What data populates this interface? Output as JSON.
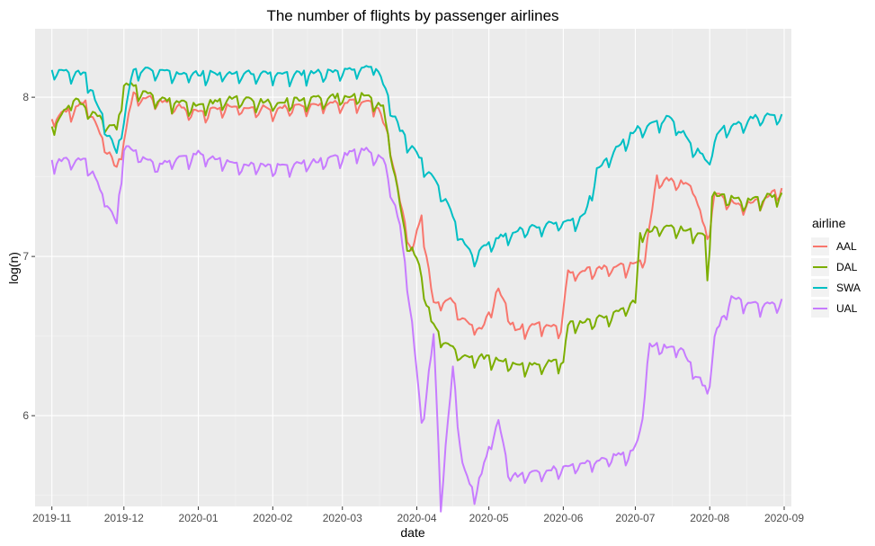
{
  "chart_data": {
    "type": "line",
    "title": "The number of flights by passenger airlines",
    "xlabel": "date",
    "ylabel": "log(n)",
    "x_range": [
      "2019-10-25",
      "2020-09-04"
    ],
    "ylim": [
      5.43,
      8.43
    ],
    "x_ticks": [
      "2019-11",
      "2019-12",
      "2020-01",
      "2020-02",
      "2020-03",
      "2020-04",
      "2020-05",
      "2020-06",
      "2020-07",
      "2020-08",
      "2020-09"
    ],
    "y_ticks": [
      6,
      7,
      8
    ],
    "grid": true,
    "legend": {
      "title": "airline",
      "position": "right"
    },
    "series": [
      {
        "name": "AAL",
        "color": "#F8766D",
        "points": [
          [
            "2019-11-01",
            7.87
          ],
          [
            "2019-11-15",
            7.97
          ],
          [
            "2019-11-28",
            7.55
          ],
          [
            "2019-12-05",
            8.02
          ],
          [
            "2019-12-20",
            7.97
          ],
          [
            "2020-01-01",
            7.9
          ],
          [
            "2020-01-15",
            7.95
          ],
          [
            "2020-02-01",
            7.93
          ],
          [
            "2020-02-20",
            7.96
          ],
          [
            "2020-03-05",
            7.98
          ],
          [
            "2020-03-15",
            7.96
          ],
          [
            "2020-03-20",
            7.78
          ],
          [
            "2020-03-25",
            7.35
          ],
          [
            "2020-03-30",
            7.05
          ],
          [
            "2020-04-03",
            7.25
          ],
          [
            "2020-04-08",
            6.7
          ],
          [
            "2020-04-15",
            6.75
          ],
          [
            "2020-04-20",
            6.6
          ],
          [
            "2020-04-28",
            6.55
          ],
          [
            "2020-05-05",
            6.8
          ],
          [
            "2020-05-12",
            6.55
          ],
          [
            "2020-05-20",
            6.58
          ],
          [
            "2020-05-31",
            6.56
          ],
          [
            "2020-06-03",
            6.9
          ],
          [
            "2020-06-15",
            6.93
          ],
          [
            "2020-07-01",
            6.95
          ],
          [
            "2020-07-05",
            7.0
          ],
          [
            "2020-07-10",
            7.5
          ],
          [
            "2020-07-25",
            7.45
          ],
          [
            "2020-07-31",
            7.12
          ],
          [
            "2020-08-03",
            7.4
          ],
          [
            "2020-08-15",
            7.32
          ],
          [
            "2020-08-25",
            7.38
          ],
          [
            "2020-08-31",
            7.43
          ]
        ]
      },
      {
        "name": "DAL",
        "color": "#7CAE00",
        "points": [
          [
            "2019-11-01",
            7.82
          ],
          [
            "2019-11-10",
            8.0
          ],
          [
            "2019-11-28",
            7.8
          ],
          [
            "2019-12-01",
            8.1
          ],
          [
            "2019-12-15",
            8.0
          ],
          [
            "2020-01-01",
            7.95
          ],
          [
            "2020-01-15",
            8.0
          ],
          [
            "2020-02-01",
            7.97
          ],
          [
            "2020-02-20",
            8.0
          ],
          [
            "2020-03-10",
            8.02
          ],
          [
            "2020-03-18",
            7.95
          ],
          [
            "2020-03-22",
            7.6
          ],
          [
            "2020-03-27",
            7.15
          ],
          [
            "2020-04-02",
            6.95
          ],
          [
            "2020-04-07",
            6.6
          ],
          [
            "2020-04-12",
            6.48
          ],
          [
            "2020-04-20",
            6.38
          ],
          [
            "2020-05-01",
            6.37
          ],
          [
            "2020-05-15",
            6.32
          ],
          [
            "2020-06-01",
            6.35
          ],
          [
            "2020-06-03",
            6.58
          ],
          [
            "2020-06-20",
            6.63
          ],
          [
            "2020-07-01",
            6.72
          ],
          [
            "2020-07-03",
            7.15
          ],
          [
            "2020-07-15",
            7.2
          ],
          [
            "2020-07-30",
            7.14
          ],
          [
            "2020-07-31",
            6.85
          ],
          [
            "2020-08-02",
            7.4
          ],
          [
            "2020-08-15",
            7.35
          ],
          [
            "2020-08-25",
            7.38
          ],
          [
            "2020-08-31",
            7.4
          ]
        ]
      },
      {
        "name": "SWA",
        "color": "#00BFC4",
        "points": [
          [
            "2019-11-01",
            8.18
          ],
          [
            "2019-11-15",
            8.15
          ],
          [
            "2019-11-28",
            7.65
          ],
          [
            "2019-12-05",
            8.18
          ],
          [
            "2020-01-01",
            8.15
          ],
          [
            "2020-01-20",
            8.16
          ],
          [
            "2020-02-10",
            8.15
          ],
          [
            "2020-03-01",
            8.17
          ],
          [
            "2020-03-15",
            8.2
          ],
          [
            "2020-03-20",
            8.0
          ],
          [
            "2020-03-25",
            7.8
          ],
          [
            "2020-04-01",
            7.65
          ],
          [
            "2020-04-10",
            7.45
          ],
          [
            "2020-04-15",
            7.3
          ],
          [
            "2020-04-20",
            7.1
          ],
          [
            "2020-04-25",
            7.0
          ],
          [
            "2020-05-01",
            7.1
          ],
          [
            "2020-05-15",
            7.18
          ],
          [
            "2020-05-31",
            7.22
          ],
          [
            "2020-06-10",
            7.26
          ],
          [
            "2020-06-15",
            7.55
          ],
          [
            "2020-07-01",
            7.8
          ],
          [
            "2020-07-15",
            7.88
          ],
          [
            "2020-07-31",
            7.6
          ],
          [
            "2020-08-05",
            7.8
          ],
          [
            "2020-08-20",
            7.88
          ],
          [
            "2020-08-31",
            7.9
          ]
        ]
      },
      {
        "name": "UAL",
        "color": "#C77CFF",
        "points": [
          [
            "2019-11-01",
            7.6
          ],
          [
            "2019-11-15",
            7.62
          ],
          [
            "2019-11-28",
            7.22
          ],
          [
            "2019-12-01",
            7.7
          ],
          [
            "2019-12-15",
            7.58
          ],
          [
            "2020-01-01",
            7.65
          ],
          [
            "2020-01-20",
            7.58
          ],
          [
            "2020-02-01",
            7.57
          ],
          [
            "2020-02-20",
            7.6
          ],
          [
            "2020-03-10",
            7.68
          ],
          [
            "2020-03-18",
            7.62
          ],
          [
            "2020-03-25",
            7.2
          ],
          [
            "2020-03-30",
            6.6
          ],
          [
            "2020-04-03",
            5.95
          ],
          [
            "2020-04-08",
            6.5
          ],
          [
            "2020-04-11",
            5.47
          ],
          [
            "2020-04-16",
            6.3
          ],
          [
            "2020-04-20",
            5.7
          ],
          [
            "2020-04-25",
            5.5
          ],
          [
            "2020-05-01",
            5.8
          ],
          [
            "2020-05-05",
            5.98
          ],
          [
            "2020-05-10",
            5.62
          ],
          [
            "2020-05-20",
            5.65
          ],
          [
            "2020-06-01",
            5.68
          ],
          [
            "2020-06-15",
            5.72
          ],
          [
            "2020-06-30",
            5.78
          ],
          [
            "2020-07-03",
            5.9
          ],
          [
            "2020-07-07",
            6.45
          ],
          [
            "2020-07-20",
            6.43
          ],
          [
            "2020-07-31",
            6.15
          ],
          [
            "2020-08-03",
            6.5
          ],
          [
            "2020-08-10",
            6.75
          ],
          [
            "2020-08-20",
            6.7
          ],
          [
            "2020-08-31",
            6.72
          ]
        ]
      }
    ]
  }
}
